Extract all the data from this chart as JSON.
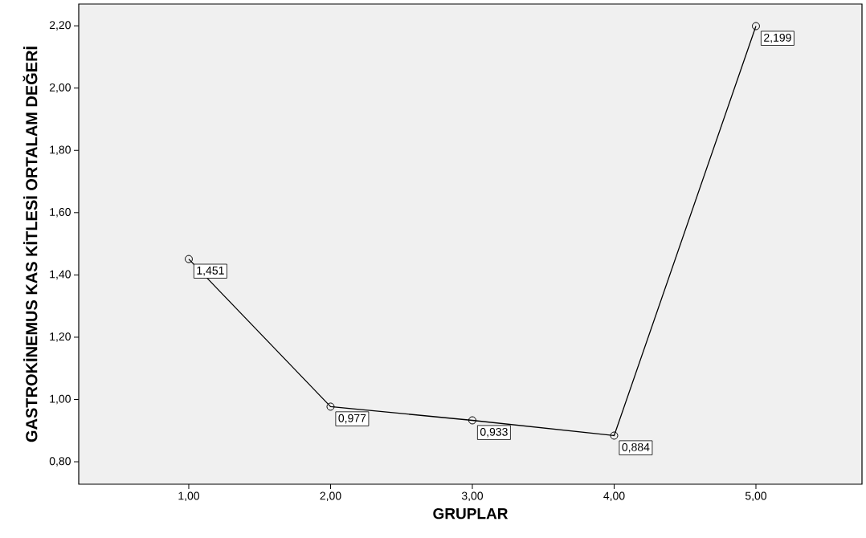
{
  "chart_data": {
    "type": "line",
    "xlabel": "GRUPLAR",
    "ylabel": "GASTROKİNEMUS KAS KİTLESİ ORTALAM DEĞERİ",
    "x": [
      1,
      2,
      3,
      4,
      5
    ],
    "values": [
      1.451,
      0.977,
      0.933,
      0.884,
      2.199
    ],
    "value_labels": [
      "1,451",
      "0,977",
      "0,933",
      "0,884",
      "2,199"
    ],
    "color": "#000000",
    "marker": "circle",
    "line_style": "solid",
    "grid": false,
    "xlim": [
      0.224,
      5.748
    ],
    "ylim": [
      0.728,
      2.27
    ],
    "xticks": [
      {
        "value": 1,
        "label": "1,00"
      },
      {
        "value": 2,
        "label": "2,00"
      },
      {
        "value": 3,
        "label": "3,00"
      },
      {
        "value": 4,
        "label": "4,00"
      },
      {
        "value": 5,
        "label": "5,00"
      }
    ],
    "yticks": [
      {
        "value": 0.8,
        "label": "0,80"
      },
      {
        "value": 1.0,
        "label": "1,00"
      },
      {
        "value": 1.2,
        "label": "1,20"
      },
      {
        "value": 1.4,
        "label": "1,40"
      },
      {
        "value": 1.6,
        "label": "1,60"
      },
      {
        "value": 1.8,
        "label": "1,80"
      },
      {
        "value": 2.0,
        "label": "2,00"
      },
      {
        "value": 2.2,
        "label": "2,20"
      }
    ]
  }
}
